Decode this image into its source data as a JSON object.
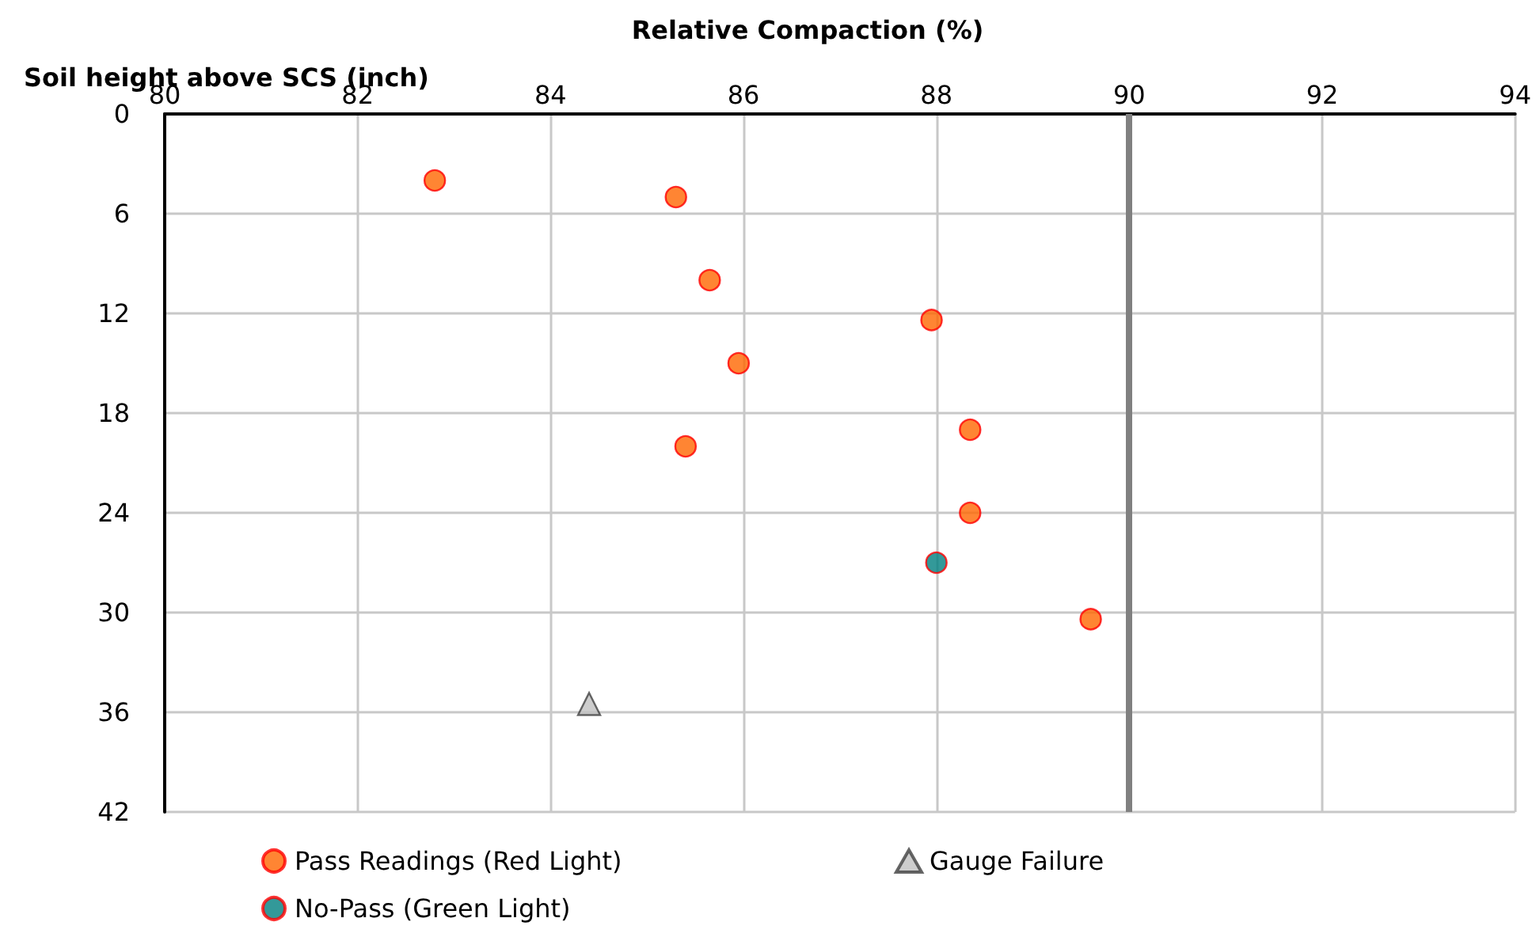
{
  "chart_data": {
    "type": "scatter",
    "xlabel": "Relative Compaction (%)",
    "ylabel": "Soil height above SCS (inch)",
    "xlim": [
      80,
      94
    ],
    "xticks": [
      80,
      82,
      84,
      86,
      88,
      90,
      92,
      94
    ],
    "ylim": [
      42,
      0
    ],
    "yticks": [
      0,
      6,
      12,
      18,
      24,
      30,
      36,
      42
    ],
    "grid": true,
    "legend": "bottom",
    "series": [
      {
        "name": "Pass Readings (Red Light)",
        "color": "#ff6600",
        "marker": "circle",
        "x": [
          82.8,
          85.3,
          85.65,
          87.95,
          85.95,
          88.35,
          85.4,
          88.35,
          89.6
        ],
        "values": [
          4,
          5,
          10,
          12.4,
          15,
          19,
          20,
          24,
          30.4
        ]
      },
      {
        "name": "No-Pass (Green Light)",
        "color": "#008080",
        "marker": "circle",
        "x": [
          88
        ],
        "values": [
          27
        ]
      },
      {
        "name": "Gauge Failure",
        "color": "#c0c0c0",
        "marker": "triangle",
        "x": [
          84.4
        ],
        "values": [
          35.5
        ]
      }
    ],
    "ref_lines": [
      {
        "axis": "x",
        "value": 90,
        "color": "#808080"
      }
    ]
  }
}
